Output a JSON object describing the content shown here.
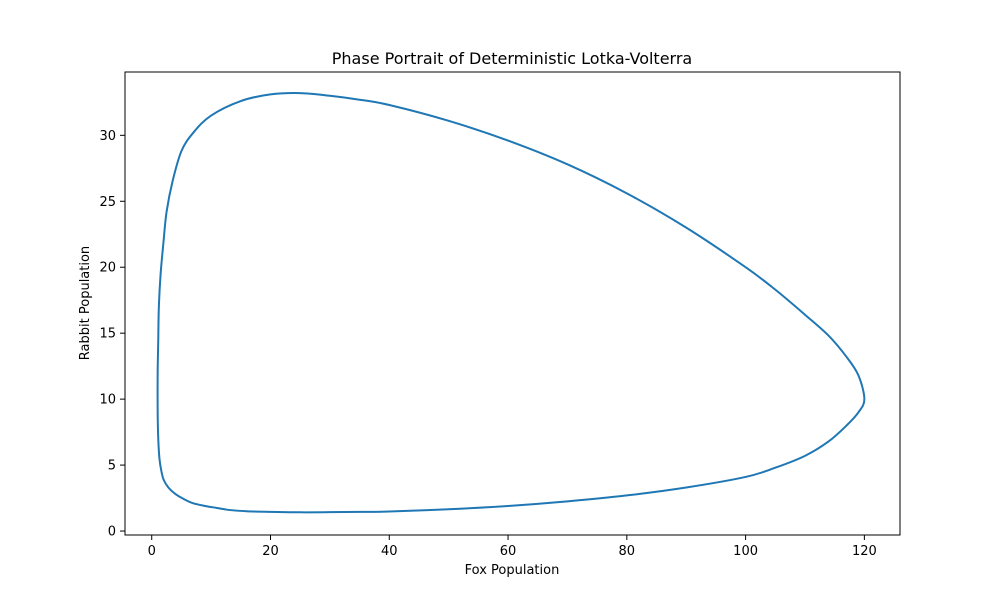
{
  "chart_data": {
    "type": "line",
    "title": "Phase Portrait of Deterministic Lotka-Volterra",
    "xlabel": "Fox Population",
    "ylabel": "Rabbit Population",
    "xlim": [
      -4.5,
      126
    ],
    "ylim": [
      -0.3,
      34.8
    ],
    "x_ticks": [
      0,
      20,
      40,
      60,
      80,
      100,
      120
    ],
    "y_ticks": [
      0,
      5,
      10,
      15,
      20,
      25,
      30
    ],
    "grid": false,
    "legend": "none",
    "series": [
      {
        "color": "#1f77b4",
        "closed": true,
        "x": [
          120,
          119,
          117,
          114,
          110,
          105,
          100,
          90,
          80,
          70,
          60,
          50,
          40,
          35,
          30,
          25,
          20,
          15,
          10,
          7,
          5,
          3.5,
          2.5,
          2,
          1.5,
          1.2,
          1.1,
          1.0,
          1.0,
          1.1,
          1.3,
          1.6,
          2.0,
          2.8,
          4,
          5.5,
          7,
          9,
          11,
          13,
          16,
          20,
          25,
          30,
          35,
          40,
          50,
          60,
          70,
          80,
          90,
          100,
          105,
          110,
          114,
          117,
          119
        ],
        "y": [
          10.0,
          11.8,
          13.2,
          14.8,
          16.4,
          18.3,
          20.0,
          23.0,
          25.6,
          27.8,
          29.6,
          31.1,
          32.3,
          32.7,
          33.0,
          33.2,
          33.1,
          32.6,
          31.5,
          30.2,
          28.8,
          26.5,
          24.2,
          22.0,
          19.5,
          17.0,
          14.5,
          12.0,
          9.0,
          7.0,
          5.5,
          4.6,
          3.9,
          3.3,
          2.8,
          2.4,
          2.1,
          1.9,
          1.75,
          1.6,
          1.5,
          1.45,
          1.42,
          1.43,
          1.45,
          1.48,
          1.65,
          1.9,
          2.25,
          2.7,
          3.3,
          4.1,
          4.8,
          5.7,
          6.8,
          8.0,
          9.0
        ]
      }
    ]
  }
}
